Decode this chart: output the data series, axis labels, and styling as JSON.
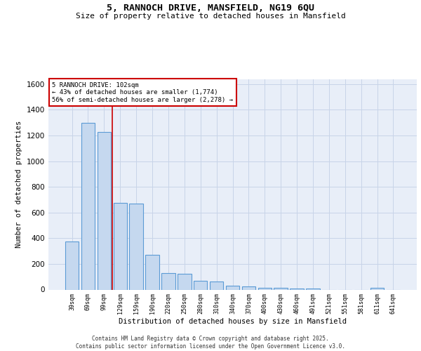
{
  "title_line1": "5, RANNOCH DRIVE, MANSFIELD, NG19 6QU",
  "title_line2": "Size of property relative to detached houses in Mansfield",
  "xlabel": "Distribution of detached houses by size in Mansfield",
  "ylabel": "Number of detached properties",
  "categories": [
    "39sqm",
    "69sqm",
    "99sqm",
    "129sqm",
    "159sqm",
    "190sqm",
    "220sqm",
    "250sqm",
    "280sqm",
    "310sqm",
    "340sqm",
    "370sqm",
    "400sqm",
    "430sqm",
    "460sqm",
    "491sqm",
    "521sqm",
    "551sqm",
    "581sqm",
    "611sqm",
    "641sqm"
  ],
  "values": [
    375,
    1300,
    1230,
    675,
    670,
    270,
    130,
    125,
    70,
    65,
    30,
    22,
    15,
    12,
    10,
    8,
    0,
    0,
    0,
    15,
    0
  ],
  "bar_color": "#c5d8ef",
  "bar_edge_color": "#5b9bd5",
  "bg_color": "#e8eef8",
  "grid_color": "#c8d4e8",
  "vline_x": 2.5,
  "vline_color": "#cc0000",
  "annotation_text": "5 RANNOCH DRIVE: 102sqm\n← 43% of detached houses are smaller (1,774)\n56% of semi-detached houses are larger (2,278) →",
  "annotation_box_color": "#ffffff",
  "annotation_box_edge": "#cc0000",
  "footer_text": "Contains HM Land Registry data © Crown copyright and database right 2025.\nContains public sector information licensed under the Open Government Licence v3.0.",
  "ylim": [
    0,
    1640
  ],
  "yticks": [
    0,
    200,
    400,
    600,
    800,
    1000,
    1200,
    1400,
    1600
  ]
}
